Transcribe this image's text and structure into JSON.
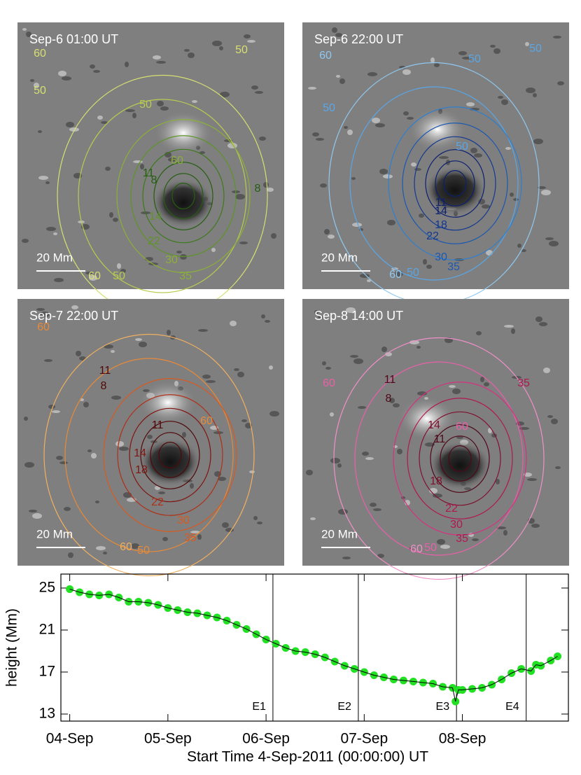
{
  "panels": [
    {
      "title": "Sep-6 01:00 UT",
      "scale_label": "20 Mm",
      "contour_labels": [
        "60",
        "50",
        "50",
        "50",
        "60",
        "11",
        "8",
        "8",
        "14",
        "22",
        "30",
        "35",
        "60",
        "50"
      ]
    },
    {
      "title": "Sep-6 22:00 UT",
      "scale_label": "20 Mm",
      "contour_labels": [
        "60",
        "50",
        "50",
        "50",
        "50",
        "11",
        "14",
        "18",
        "22",
        "30",
        "35",
        "60",
        "50"
      ]
    },
    {
      "title": "Sep-7 22:00 UT",
      "scale_label": "20 Mm",
      "contour_labels": [
        "60",
        "8",
        "11",
        "11",
        "60",
        "14",
        "18",
        "22",
        "30",
        "35",
        "60",
        "50"
      ]
    },
    {
      "title": "Sep-8 14:00 UT",
      "scale_label": "20 Mm",
      "contour_labels": [
        "60",
        "8",
        "11",
        "35",
        "14",
        "11",
        "60",
        "18",
        "22",
        "30",
        "35",
        "60",
        "50"
      ]
    }
  ],
  "chart_data": {
    "type": "line",
    "xlabel": "Start Time 4-Sep-2011 (00:00:00) UT",
    "ylabel": "height (Mm)",
    "x": [
      0,
      0.1,
      0.2,
      0.3,
      0.4,
      0.5,
      0.6,
      0.7,
      0.8,
      0.9,
      1.0,
      1.1,
      1.2,
      1.3,
      1.4,
      1.5,
      1.6,
      1.7,
      1.8,
      1.9,
      2.0,
      2.1,
      2.2,
      2.3,
      2.4,
      2.5,
      2.6,
      2.7,
      2.8,
      2.9,
      3.0,
      3.1,
      3.2,
      3.3,
      3.4,
      3.5,
      3.6,
      3.7,
      3.8,
      3.9,
      3.93,
      3.96,
      4.0,
      4.1,
      4.2,
      4.3,
      4.4,
      4.5,
      4.6,
      4.7,
      4.75,
      4.8,
      4.9,
      4.97
    ],
    "values": [
      24.9,
      24.6,
      24.4,
      24.3,
      24.4,
      24.1,
      23.7,
      23.7,
      23.6,
      23.4,
      23.1,
      22.9,
      22.7,
      22.6,
      22.4,
      22.2,
      21.9,
      21.5,
      21.1,
      20.6,
      20.1,
      19.7,
      19.3,
      19.0,
      18.9,
      18.7,
      18.4,
      18.0,
      17.6,
      17.3,
      17.0,
      16.7,
      16.5,
      16.3,
      16.2,
      16.1,
      16.0,
      15.9,
      15.6,
      15.5,
      14.2,
      15.3,
      15.3,
      15.4,
      15.5,
      15.8,
      16.3,
      16.9,
      17.3,
      17.1,
      17.7,
      17.6,
      18.1,
      18.5
    ],
    "color": "#22e022",
    "line_color": "#000000",
    "xlim": [
      -0.09,
      5.08
    ],
    "ylim": [
      12.33,
      26.33
    ],
    "xticks": [
      {
        "value": 0,
        "label": "04-Sep"
      },
      {
        "value": 1,
        "label": "05-Sep"
      },
      {
        "value": 2,
        "label": "06-Sep"
      },
      {
        "value": 3,
        "label": "07-Sep"
      },
      {
        "value": 4,
        "label": "08-Sep"
      }
    ],
    "yticks": [
      13,
      17,
      21,
      25
    ],
    "events": [
      {
        "label": "E1",
        "x": 2.07
      },
      {
        "label": "E2",
        "x": 2.94
      },
      {
        "label": "E3",
        "x": 3.94
      },
      {
        "label": "E4",
        "x": 4.65
      }
    ]
  }
}
